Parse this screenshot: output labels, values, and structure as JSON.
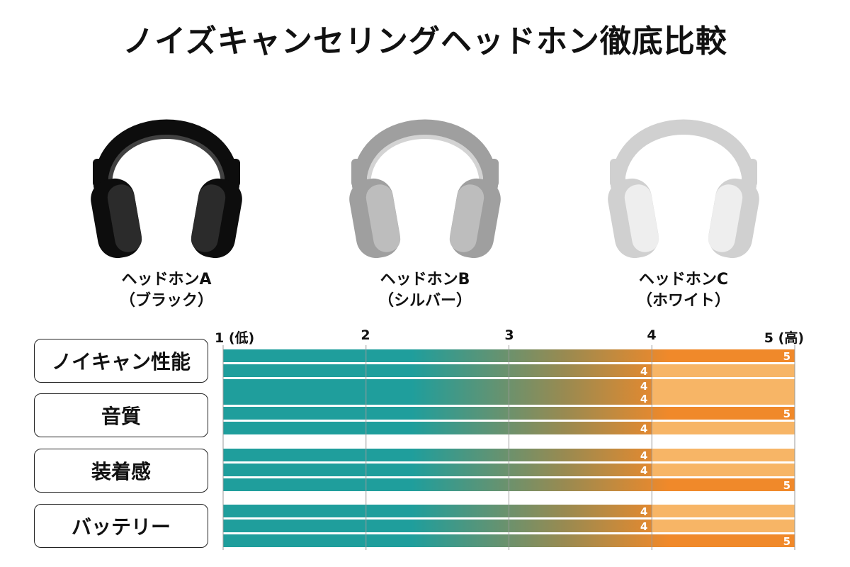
{
  "title": "ノイズキャンセリングヘッドホン徹底比較",
  "products": [
    {
      "name": "ヘッドホンA",
      "color_label": "（ブラック）",
      "icon": "headphones-icon",
      "tone": "#2b2b2b"
    },
    {
      "name": "ヘッドホンB",
      "color_label": "（シルバー）",
      "icon": "headphones-icon",
      "tone": "#bdbdbd"
    },
    {
      "name": "ヘッドホンC",
      "color_label": "（ホワイト）",
      "icon": "headphones-icon",
      "tone": "#eeeeee"
    }
  ],
  "chart_data": {
    "type": "bar",
    "orientation": "horizontal",
    "categories": [
      "ノイキャン性能",
      "音質",
      "装着感",
      "バッテリー"
    ],
    "series": [
      {
        "values": [
          5,
          4,
          4,
          4
        ]
      },
      {
        "values": [
          4,
          5,
          4,
          4
        ]
      },
      {
        "values": [
          4,
          4,
          5,
          5
        ]
      }
    ],
    "xlim": [
      1,
      5
    ],
    "ticks": [
      {
        "value": 1,
        "label": "1 (低)"
      },
      {
        "value": 2,
        "label": "2"
      },
      {
        "value": 3,
        "label": "3"
      },
      {
        "value": 4,
        "label": "4"
      },
      {
        "value": 5,
        "label": "5 (高)"
      }
    ],
    "grid": true,
    "colors": {
      "teal": "#1f9e9c",
      "orange": "#f0892a",
      "light_orange": "#f7b566"
    }
  }
}
